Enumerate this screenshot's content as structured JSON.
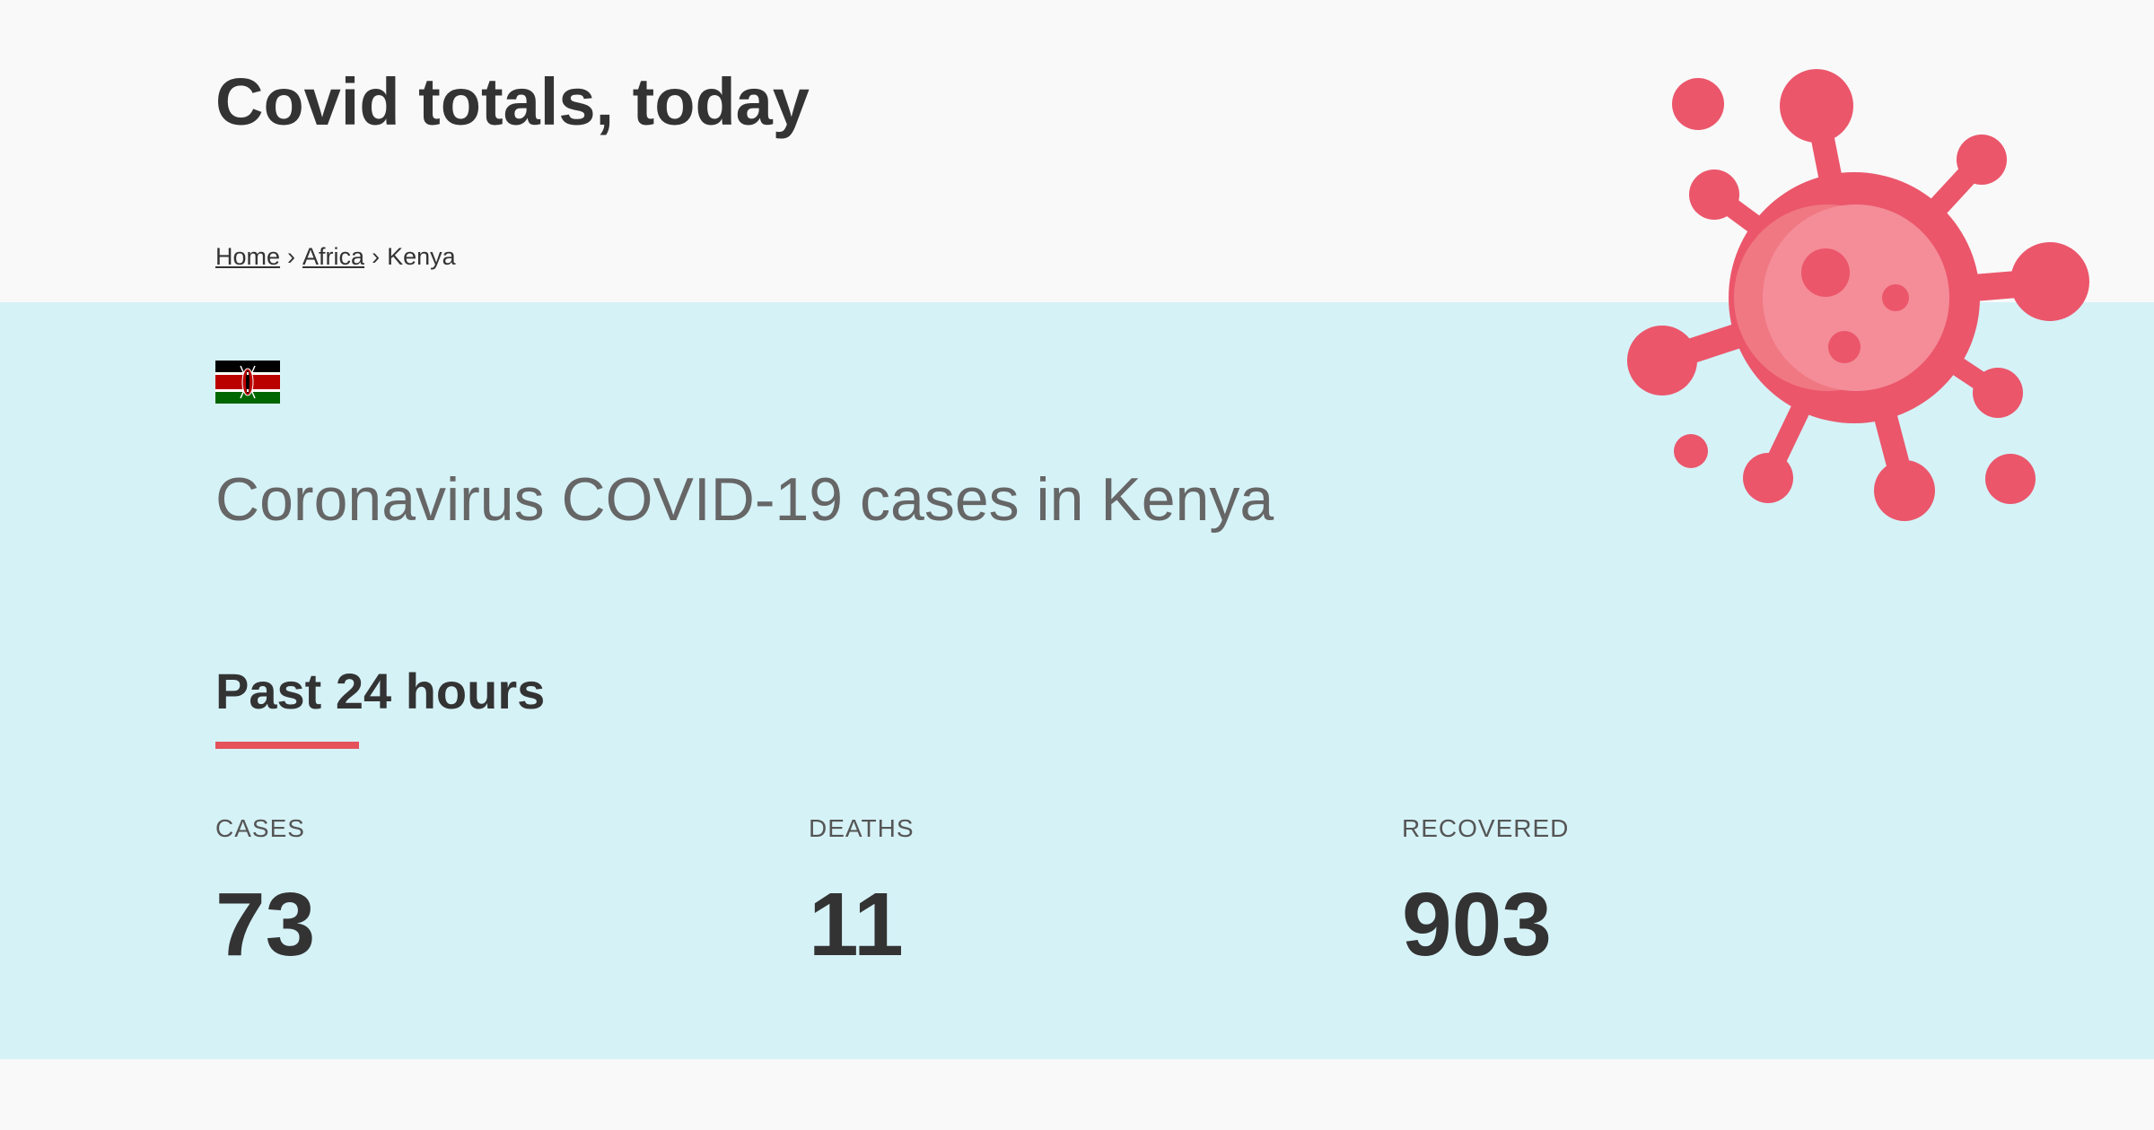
{
  "header": {
    "title": "Covid totals, today",
    "breadcrumb": {
      "home": "Home",
      "region": "Africa",
      "current": "Kenya",
      "separator": "›"
    }
  },
  "main": {
    "flag_icon": "kenya-flag",
    "heading": "Coronavirus COVID-19 cases in Kenya",
    "section_title": "Past 24 hours",
    "stats": [
      {
        "label": "CASES",
        "value": "73"
      },
      {
        "label": "DEATHS",
        "value": "11"
      },
      {
        "label": "RECOVERED",
        "value": "903"
      }
    ]
  },
  "decor": {
    "virus_icon": "coronavirus-icon"
  },
  "colors": {
    "accent": "#e5525b",
    "virus": "#eb566b",
    "main_background": "#d5f2f7",
    "page_background": "#f9f9f9"
  }
}
